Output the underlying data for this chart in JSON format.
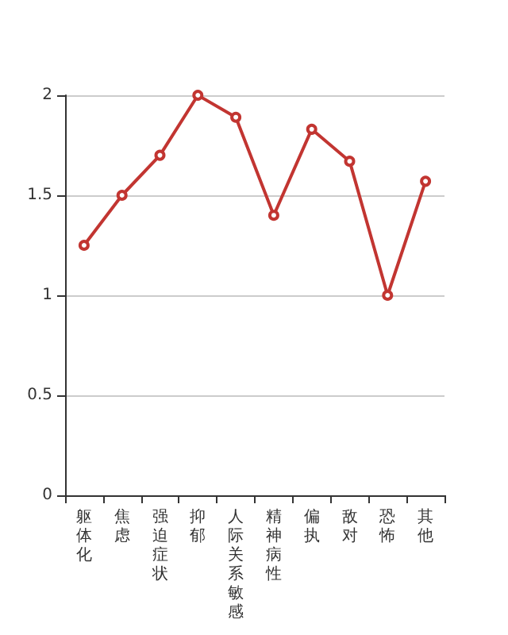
{
  "chart_data": {
    "type": "line",
    "categories": [
      "躯体化",
      "焦虑",
      "强迫症状",
      "抑郁",
      "人际关系敏感",
      "精神病性",
      "偏执",
      "敌对",
      "恐怖",
      "其他"
    ],
    "series": [
      {
        "color": "#c23531",
        "values": [
          1.25,
          1.5,
          1.7,
          2.0,
          1.89,
          1.4,
          1.83,
          1.67,
          1.0,
          1.57
        ]
      }
    ],
    "ylim": [
      0,
      2
    ],
    "yticks": [
      0,
      0.5,
      1,
      1.5,
      2
    ],
    "grid": "y",
    "marker": "circle",
    "line_style": "solid"
  }
}
